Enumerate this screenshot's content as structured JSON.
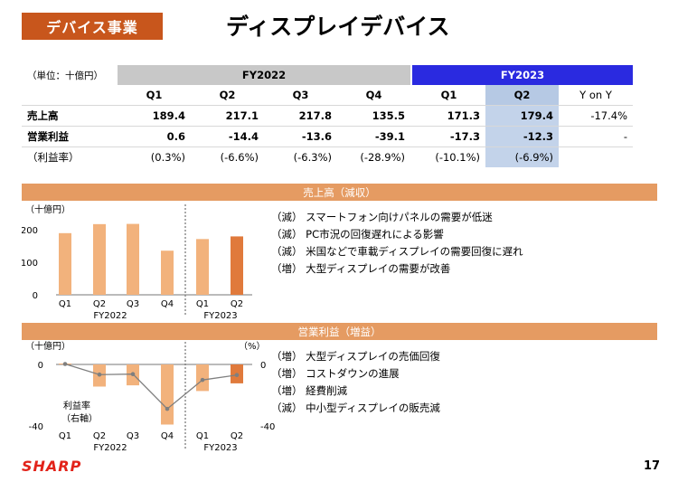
{
  "header": {
    "tag": "デバイス事業",
    "title": "ディスプレイデバイス"
  },
  "table": {
    "unit": "（単位：十億円）",
    "fy2022": "FY2022",
    "fy2023": "FY2023",
    "q": [
      "Q1",
      "Q2",
      "Q3",
      "Q4",
      "Q1",
      "Q2"
    ],
    "yoy": "Y on Y",
    "rows": [
      {
        "label": "売上高",
        "cells": [
          "189.4",
          "217.1",
          "217.8",
          "135.5",
          "171.3",
          "179.4",
          "-17.4%"
        ]
      },
      {
        "label": "営業利益",
        "cells": [
          "0.6",
          "-14.4",
          "-13.6",
          "-39.1",
          "-17.3",
          "-12.3",
          "-"
        ]
      },
      {
        "label": "（利益率）",
        "cells": [
          "(0.3%)",
          "(-6.6%)",
          "(-6.3%)",
          "(-28.9%)",
          "(-10.1%)",
          "(-6.9%)",
          ""
        ]
      }
    ]
  },
  "sales_section": {
    "band": "売上高（減収）",
    "bullets": [
      "（減）  スマートフォン向けパネルの需要が低迷",
      "（減）  PC市況の回復遅れによる影響",
      "（減）  米国などで車載ディスプレイの需要回復に遅れ",
      "（増）  大型ディスプレイの需要が改善"
    ]
  },
  "profit_section": {
    "band": "営業利益（増益）",
    "bullets": [
      "（増）  大型ディスプレイの売価回復",
      "（増）  コストダウンの進展",
      "（増）  経費削減",
      "（減）  中小型ディスプレイの販売減"
    ]
  },
  "chart_data": [
    {
      "type": "bar",
      "unit_label": "（十億円）",
      "categories": [
        "Q1",
        "Q2",
        "Q3",
        "Q4",
        "Q1",
        "Q2"
      ],
      "groups": [
        "FY2022",
        "FY2023"
      ],
      "values": [
        189.4,
        217.1,
        217.8,
        135.5,
        171.3,
        179.4
      ],
      "ylim": [
        0,
        250
      ],
      "yticks": [
        "0",
        "100",
        "200"
      ],
      "ytick_values": [
        0,
        100,
        200
      ],
      "colors": {
        "normal": "#f2b27c",
        "highlight": "#e07a3c"
      }
    },
    {
      "type": "bar",
      "unit_label": "（十億円）",
      "right_unit_label": "（%）",
      "categories": [
        "Q1",
        "Q2",
        "Q3",
        "Q4",
        "Q1",
        "Q2"
      ],
      "groups": [
        "FY2022",
        "FY2023"
      ],
      "values": [
        0.6,
        -14.4,
        -13.6,
        -39.1,
        -17.3,
        -12.3
      ],
      "margin_line": {
        "name": "利益率（右軸）",
        "name1": "利益率",
        "name2": "（右軸）",
        "values": [
          0.3,
          -6.6,
          -6.3,
          -28.9,
          -10.1,
          -6.9
        ]
      },
      "ylim": [
        -40,
        0
      ],
      "yticks_left": [
        "0",
        "-40"
      ],
      "yticks_right": [
        "0",
        "-40"
      ],
      "colors": {
        "normal": "#f2b27c",
        "highlight": "#e07a3c",
        "line": "#7f7f7f"
      }
    }
  ],
  "footer": {
    "logo": "SHARP",
    "page": "17"
  }
}
